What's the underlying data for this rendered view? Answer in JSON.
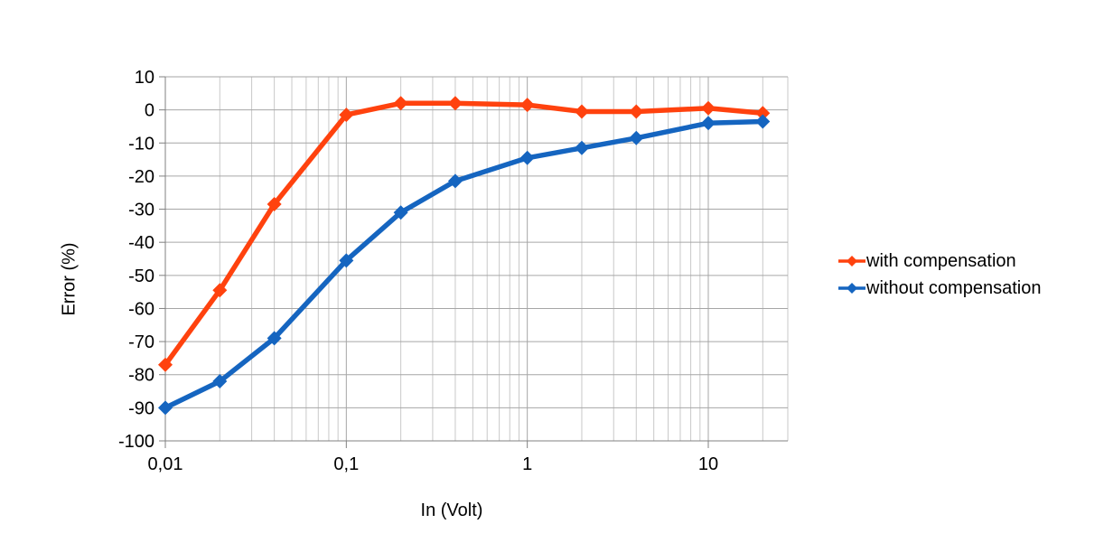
{
  "chart_data": {
    "type": "line",
    "title": "",
    "xlabel": "In (Volt)",
    "ylabel": "Error (%)",
    "x_scale": "log",
    "xlim": [
      0.01,
      27.5
    ],
    "ylim": [
      -100,
      10
    ],
    "grid": true,
    "legend_position": "right",
    "x": [
      0.01,
      0.02,
      0.04,
      0.1,
      0.2,
      0.4,
      1,
      2,
      4,
      10,
      20
    ],
    "x_ticks": [
      {
        "v": 0.01,
        "label": "0,01"
      },
      {
        "v": 0.1,
        "label": "0,1"
      },
      {
        "v": 1,
        "label": "1"
      },
      {
        "v": 10,
        "label": "10"
      }
    ],
    "y_ticks": [
      {
        "v": 10,
        "label": "10"
      },
      {
        "v": 0,
        "label": "0"
      },
      {
        "v": -10,
        "label": "-10"
      },
      {
        "v": -20,
        "label": "-20"
      },
      {
        "v": -30,
        "label": "-30"
      },
      {
        "v": -40,
        "label": "-40"
      },
      {
        "v": -50,
        "label": "-50"
      },
      {
        "v": -60,
        "label": "-60"
      },
      {
        "v": -70,
        "label": "-70"
      },
      {
        "v": -80,
        "label": "-80"
      },
      {
        "v": -90,
        "label": "-90"
      },
      {
        "v": -100,
        "label": "-100"
      }
    ],
    "series": [
      {
        "name": "with compensation",
        "color": "#ff420e",
        "marker": "diamond",
        "values": [
          -77,
          -54.5,
          -28.5,
          -1.5,
          2,
          2,
          1.5,
          -0.5,
          -0.5,
          0.5,
          -1
        ]
      },
      {
        "name": "without compensation",
        "color": "#1565c0",
        "marker": "diamond",
        "values": [
          -90,
          -82,
          -69,
          -45.5,
          -31,
          -21.5,
          -14.5,
          -11.5,
          -8.5,
          -4,
          -3.5
        ]
      }
    ]
  },
  "palette": {
    "background": "#ffffff",
    "text": "#000000",
    "grid_major": "#a6a6a6",
    "grid_minor": "#c9c9c9",
    "axis": "#808080"
  }
}
